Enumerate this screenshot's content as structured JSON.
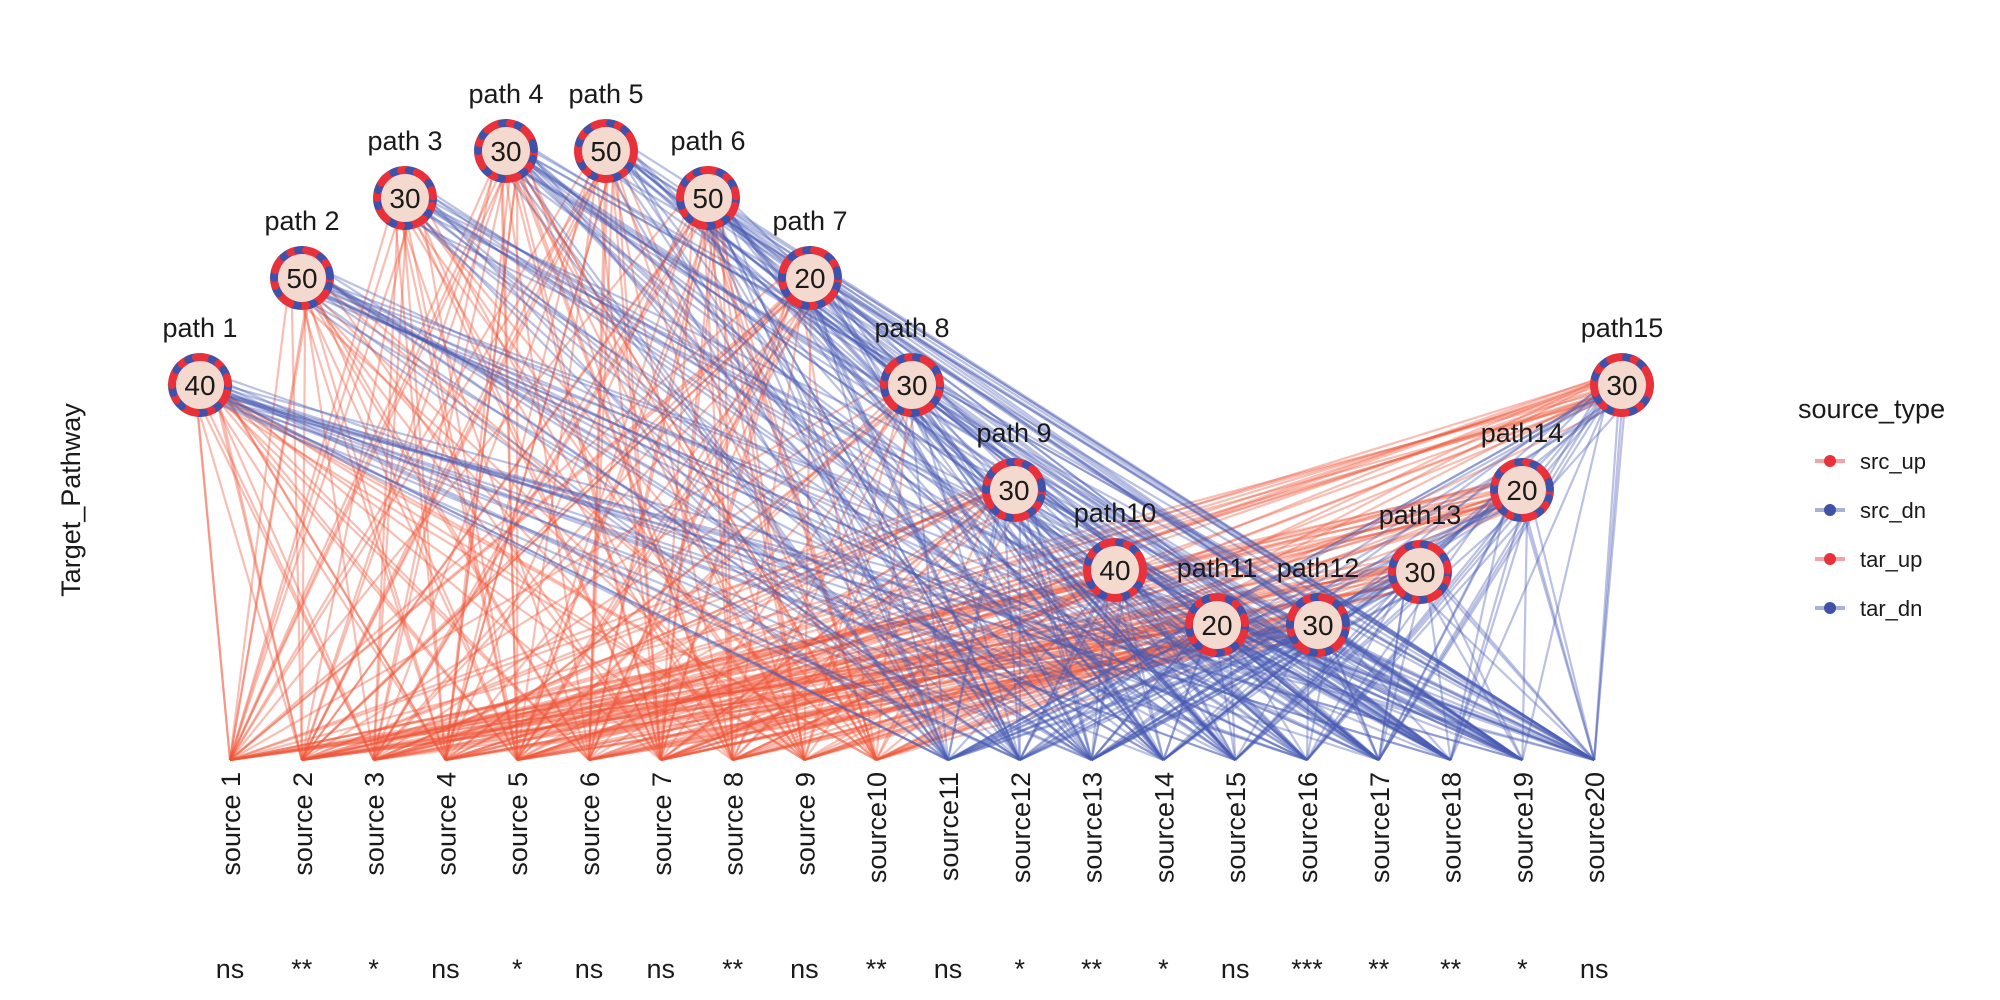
{
  "chart_data": {
    "type": "network",
    "ylabel": "Target_Pathway",
    "legend": {
      "title": "source_type",
      "position": "right",
      "entries": [
        {
          "label": "src_up",
          "color": "#E8313A"
        },
        {
          "label": "src_dn",
          "color": "#3F51A8"
        },
        {
          "label": "tar_up",
          "color": "#E8313A"
        },
        {
          "label": "tar_dn",
          "color": "#3F51A8"
        }
      ]
    },
    "colors": {
      "up": "#E8313A",
      "down": "#3F51A8",
      "edge_up": "#EE5436",
      "edge_down": "#4A5DB3"
    },
    "pathways": [
      {
        "name": "path 1",
        "value": 40
      },
      {
        "name": "path 2",
        "value": 50
      },
      {
        "name": "path 3",
        "value": 30
      },
      {
        "name": "path 4",
        "value": 30
      },
      {
        "name": "path 5",
        "value": 50
      },
      {
        "name": "path 6",
        "value": 50
      },
      {
        "name": "path 7",
        "value": 20
      },
      {
        "name": "path 8",
        "value": 30
      },
      {
        "name": "path 9",
        "value": 30
      },
      {
        "name": "path10",
        "value": 40
      },
      {
        "name": "path11",
        "value": 20
      },
      {
        "name": "path12",
        "value": 30
      },
      {
        "name": "path13",
        "value": 30
      },
      {
        "name": "path14",
        "value": 20
      },
      {
        "name": "path15",
        "value": 30
      }
    ],
    "sources": [
      {
        "name": "source 1",
        "significance": "ns",
        "type": "up"
      },
      {
        "name": "source 2",
        "significance": "**",
        "type": "up"
      },
      {
        "name": "source 3",
        "significance": "*",
        "type": "up"
      },
      {
        "name": "source 4",
        "significance": "ns",
        "type": "up"
      },
      {
        "name": "source 5",
        "significance": "*",
        "type": "up"
      },
      {
        "name": "source 6",
        "significance": "ns",
        "type": "up"
      },
      {
        "name": "source 7",
        "significance": "ns",
        "type": "up"
      },
      {
        "name": "source 8",
        "significance": "**",
        "type": "up"
      },
      {
        "name": "source 9",
        "significance": "ns",
        "type": "up"
      },
      {
        "name": "source10",
        "significance": "**",
        "type": "up"
      },
      {
        "name": "source11",
        "significance": "ns",
        "type": "down"
      },
      {
        "name": "source12",
        "significance": "*",
        "type": "down"
      },
      {
        "name": "source13",
        "significance": "**",
        "type": "down"
      },
      {
        "name": "source14",
        "significance": "*",
        "type": "down"
      },
      {
        "name": "source15",
        "significance": "ns",
        "type": "down"
      },
      {
        "name": "source16",
        "significance": "***",
        "type": "down"
      },
      {
        "name": "source17",
        "significance": "**",
        "type": "down"
      },
      {
        "name": "source18",
        "significance": "**",
        "type": "down"
      },
      {
        "name": "source19",
        "significance": "*",
        "type": "down"
      },
      {
        "name": "source20",
        "significance": "ns",
        "type": "down"
      }
    ]
  }
}
